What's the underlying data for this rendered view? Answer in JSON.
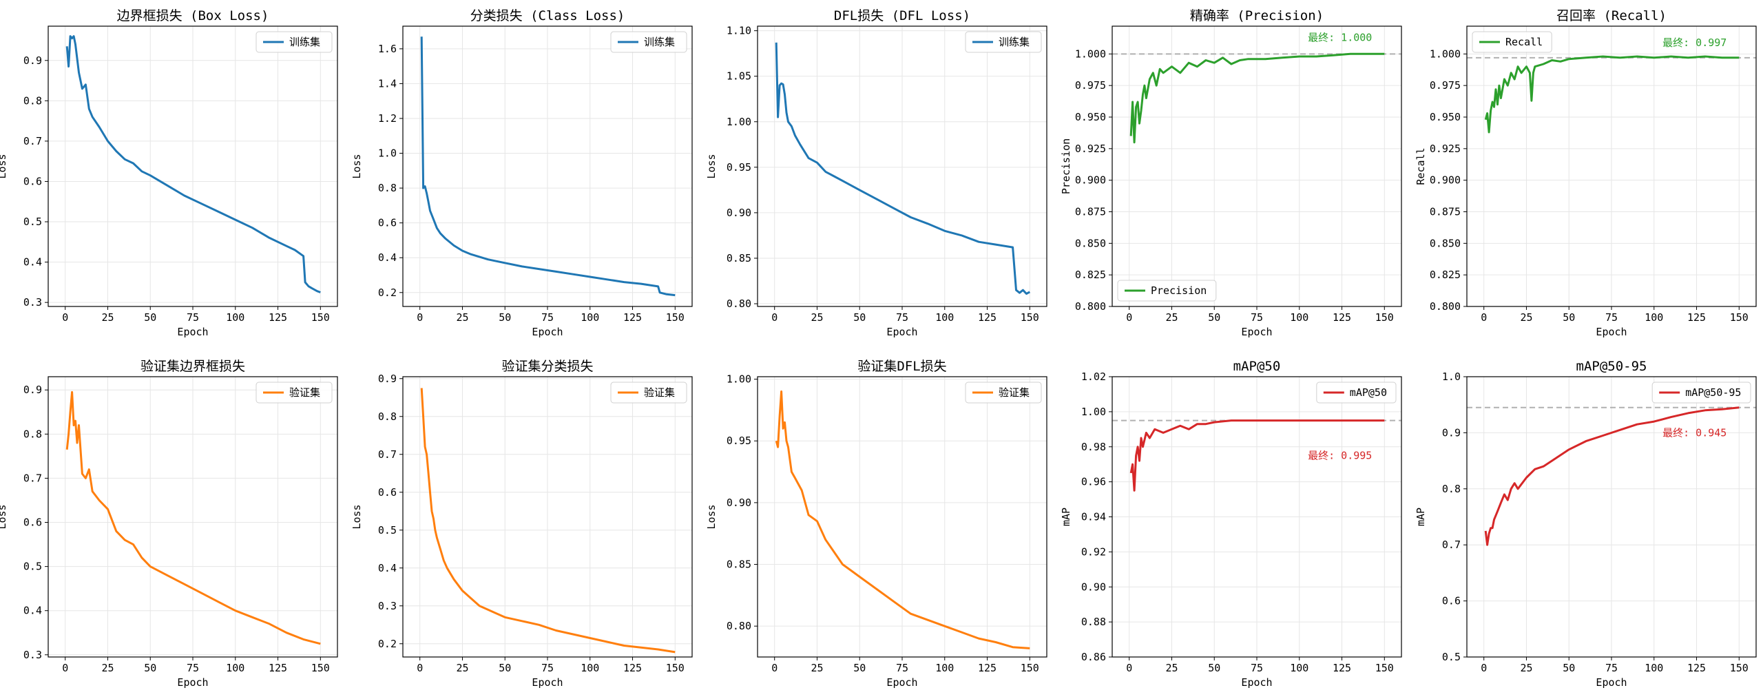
{
  "chart_data": [
    {
      "type": "line",
      "title": "边界框损失 (Box Loss)",
      "xlabel": "Epoch",
      "ylabel": "Loss",
      "xlim": [
        -10,
        160
      ],
      "ylim": [
        0.29,
        0.985
      ],
      "xticks": [
        0,
        25,
        50,
        75,
        100,
        125,
        150
      ],
      "yticks": [
        0.3,
        0.4,
        0.5,
        0.6,
        0.7,
        0.8,
        0.9
      ],
      "legend": "top-right",
      "series": [
        {
          "name": "训练集",
          "color": "#1f77b4",
          "x": [
            1,
            2,
            3,
            4,
            5,
            6,
            8,
            10,
            12,
            14,
            16,
            20,
            25,
            30,
            35,
            40,
            45,
            50,
            60,
            70,
            80,
            90,
            100,
            110,
            120,
            130,
            135,
            140,
            141,
            143,
            145,
            148,
            150
          ],
          "y": [
            0.935,
            0.885,
            0.96,
            0.955,
            0.96,
            0.94,
            0.87,
            0.83,
            0.84,
            0.78,
            0.76,
            0.735,
            0.7,
            0.675,
            0.655,
            0.645,
            0.625,
            0.615,
            0.59,
            0.565,
            0.545,
            0.525,
            0.505,
            0.485,
            0.46,
            0.44,
            0.43,
            0.415,
            0.35,
            0.34,
            0.335,
            0.328,
            0.325
          ]
        }
      ]
    },
    {
      "type": "line",
      "title": "分类损失 (Class Loss)",
      "xlabel": "Epoch",
      "ylabel": "Loss",
      "xlim": [
        -10,
        160
      ],
      "ylim": [
        0.12,
        1.73
      ],
      "xticks": [
        0,
        25,
        50,
        75,
        100,
        125,
        150
      ],
      "yticks": [
        0.2,
        0.4,
        0.6,
        0.8,
        1.0,
        1.2,
        1.4,
        1.6
      ],
      "legend": "top-right",
      "series": [
        {
          "name": "训练集",
          "color": "#1f77b4",
          "x": [
            1,
            2,
            3,
            4,
            5,
            6,
            8,
            10,
            12,
            15,
            20,
            25,
            30,
            40,
            50,
            60,
            70,
            80,
            90,
            100,
            110,
            120,
            130,
            140,
            141,
            145,
            150
          ],
          "y": [
            1.67,
            0.8,
            0.81,
            0.77,
            0.72,
            0.67,
            0.62,
            0.57,
            0.54,
            0.51,
            0.47,
            0.44,
            0.42,
            0.39,
            0.37,
            0.35,
            0.335,
            0.32,
            0.305,
            0.29,
            0.275,
            0.26,
            0.25,
            0.235,
            0.2,
            0.19,
            0.185
          ]
        }
      ]
    },
    {
      "type": "line",
      "title": "DFL损失 (DFL Loss)",
      "xlabel": "Epoch",
      "ylabel": "Loss",
      "xlim": [
        -10,
        160
      ],
      "ylim": [
        0.797,
        1.105
      ],
      "xticks": [
        0,
        25,
        50,
        75,
        100,
        125,
        150
      ],
      "yticks": [
        0.8,
        0.85,
        0.9,
        0.95,
        1.0,
        1.05,
        1.1
      ],
      "legend": "top-right",
      "series": [
        {
          "name": "训练集",
          "color": "#1f77b4",
          "x": [
            1,
            2,
            3,
            4,
            5,
            6,
            7,
            8,
            10,
            12,
            15,
            20,
            25,
            30,
            35,
            40,
            50,
            60,
            70,
            80,
            90,
            100,
            110,
            120,
            130,
            140,
            142,
            144,
            146,
            148,
            150
          ],
          "y": [
            1.087,
            1.005,
            1.04,
            1.042,
            1.041,
            1.03,
            1.01,
            1.0,
            0.995,
            0.985,
            0.975,
            0.96,
            0.955,
            0.945,
            0.94,
            0.935,
            0.925,
            0.915,
            0.905,
            0.895,
            0.888,
            0.88,
            0.875,
            0.868,
            0.865,
            0.862,
            0.815,
            0.812,
            0.815,
            0.811,
            0.813
          ]
        }
      ]
    },
    {
      "type": "line",
      "title": "精确率 (Precision)",
      "xlabel": "Epoch",
      "ylabel": "Precision",
      "xlim": [
        -10,
        160
      ],
      "ylim": [
        0.8,
        1.022
      ],
      "xticks": [
        0,
        25,
        50,
        75,
        100,
        125,
        150
      ],
      "yticks": [
        0.8,
        0.825,
        0.85,
        0.875,
        0.9,
        0.925,
        0.95,
        0.975,
        1.0
      ],
      "legend": "bottom-left",
      "reference_line": 1.0,
      "annotation": "最终: 1.000",
      "annotation_anchor": {
        "x": 105,
        "y": 1.013
      },
      "annotation_color": "#2ca02c",
      "series": [
        {
          "name": "Precision",
          "color": "#2ca02c",
          "x": [
            1,
            2,
            3,
            4,
            5,
            6,
            7,
            8,
            9,
            10,
            12,
            14,
            16,
            18,
            20,
            25,
            30,
            35,
            40,
            45,
            50,
            55,
            60,
            65,
            70,
            80,
            90,
            100,
            110,
            120,
            130,
            140,
            150
          ],
          "y": [
            0.935,
            0.962,
            0.93,
            0.958,
            0.962,
            0.945,
            0.955,
            0.968,
            0.975,
            0.965,
            0.98,
            0.985,
            0.975,
            0.988,
            0.985,
            0.99,
            0.985,
            0.993,
            0.99,
            0.995,
            0.993,
            0.997,
            0.992,
            0.995,
            0.996,
            0.996,
            0.997,
            0.998,
            0.998,
            0.999,
            1.0,
            1.0,
            1.0
          ]
        }
      ]
    },
    {
      "type": "line",
      "title": "召回率 (Recall)",
      "xlabel": "Epoch",
      "ylabel": "Recall",
      "xlim": [
        -10,
        160
      ],
      "ylim": [
        0.8,
        1.022
      ],
      "xticks": [
        0,
        25,
        50,
        75,
        100,
        125,
        150
      ],
      "yticks": [
        0.8,
        0.825,
        0.85,
        0.875,
        0.9,
        0.925,
        0.95,
        0.975,
        1.0
      ],
      "legend": "top-left",
      "reference_line": 0.997,
      "annotation": "最终: 0.997",
      "annotation_anchor": {
        "x": 105,
        "y": 1.009
      },
      "annotation_color": "#2ca02c",
      "series": [
        {
          "name": "Recall",
          "color": "#2ca02c",
          "x": [
            1,
            2,
            3,
            4,
            5,
            6,
            7,
            8,
            9,
            10,
            12,
            14,
            16,
            18,
            20,
            22,
            25,
            27,
            28,
            29,
            30,
            35,
            40,
            45,
            50,
            60,
            70,
            80,
            90,
            100,
            110,
            120,
            130,
            140,
            150
          ],
          "y": [
            0.948,
            0.953,
            0.938,
            0.955,
            0.962,
            0.958,
            0.972,
            0.96,
            0.975,
            0.965,
            0.98,
            0.975,
            0.985,
            0.98,
            0.99,
            0.985,
            0.99,
            0.985,
            0.963,
            0.985,
            0.99,
            0.992,
            0.995,
            0.994,
            0.996,
            0.997,
            0.998,
            0.997,
            0.998,
            0.997,
            0.998,
            0.997,
            0.998,
            0.997,
            0.997
          ]
        }
      ]
    },
    {
      "type": "line",
      "title": "验证集边界框损失",
      "xlabel": "Epoch",
      "ylabel": "Loss",
      "xlim": [
        -10,
        160
      ],
      "ylim": [
        0.295,
        0.93
      ],
      "xticks": [
        0,
        25,
        50,
        75,
        100,
        125,
        150
      ],
      "yticks": [
        0.3,
        0.4,
        0.5,
        0.6,
        0.7,
        0.8,
        0.9
      ],
      "legend": "top-right",
      "series": [
        {
          "name": "验证集",
          "color": "#ff7f0e",
          "x": [
            1,
            2,
            3,
            4,
            5,
            6,
            7,
            8,
            10,
            12,
            14,
            16,
            20,
            25,
            30,
            35,
            40,
            45,
            50,
            60,
            70,
            80,
            90,
            100,
            110,
            120,
            130,
            140,
            150
          ],
          "y": [
            0.765,
            0.8,
            0.85,
            0.895,
            0.82,
            0.83,
            0.78,
            0.82,
            0.71,
            0.7,
            0.72,
            0.67,
            0.65,
            0.63,
            0.58,
            0.56,
            0.55,
            0.52,
            0.5,
            0.48,
            0.46,
            0.44,
            0.42,
            0.4,
            0.385,
            0.37,
            0.35,
            0.335,
            0.325
          ]
        }
      ]
    },
    {
      "type": "line",
      "title": "验证集分类损失",
      "xlabel": "Epoch",
      "ylabel": "Loss",
      "xlim": [
        -10,
        160
      ],
      "ylim": [
        0.165,
        0.905
      ],
      "xticks": [
        0,
        25,
        50,
        75,
        100,
        125,
        150
      ],
      "yticks": [
        0.2,
        0.3,
        0.4,
        0.5,
        0.6,
        0.7,
        0.8,
        0.9
      ],
      "legend": "top-right",
      "series": [
        {
          "name": "验证集",
          "color": "#ff7f0e",
          "x": [
            1,
            2,
            3,
            4,
            5,
            6,
            7,
            8,
            9,
            10,
            12,
            14,
            16,
            20,
            25,
            30,
            35,
            40,
            50,
            60,
            70,
            80,
            90,
            100,
            110,
            120,
            130,
            140,
            150
          ],
          "y": [
            0.875,
            0.8,
            0.72,
            0.7,
            0.65,
            0.6,
            0.55,
            0.53,
            0.5,
            0.48,
            0.45,
            0.42,
            0.4,
            0.37,
            0.34,
            0.32,
            0.3,
            0.29,
            0.27,
            0.26,
            0.25,
            0.235,
            0.225,
            0.215,
            0.205,
            0.195,
            0.19,
            0.185,
            0.178
          ]
        }
      ]
    },
    {
      "type": "line",
      "title": "验证集DFL损失",
      "xlabel": "Epoch",
      "ylabel": "Loss",
      "xlim": [
        -10,
        160
      ],
      "ylim": [
        0.775,
        1.002
      ],
      "xticks": [
        0,
        25,
        50,
        75,
        100,
        125,
        150
      ],
      "yticks": [
        0.8,
        0.85,
        0.9,
        0.95,
        1.0
      ],
      "legend": "top-right",
      "series": [
        {
          "name": "验证集",
          "color": "#ff7f0e",
          "x": [
            1,
            2,
            3,
            4,
            5,
            6,
            7,
            8,
            10,
            12,
            14,
            16,
            20,
            25,
            30,
            35,
            40,
            45,
            50,
            60,
            70,
            80,
            90,
            100,
            110,
            120,
            130,
            140,
            150
          ],
          "y": [
            0.95,
            0.945,
            0.97,
            0.99,
            0.96,
            0.965,
            0.95,
            0.945,
            0.925,
            0.92,
            0.915,
            0.91,
            0.89,
            0.885,
            0.87,
            0.86,
            0.85,
            0.845,
            0.84,
            0.83,
            0.82,
            0.81,
            0.805,
            0.8,
            0.795,
            0.79,
            0.787,
            0.783,
            0.782
          ]
        }
      ]
    },
    {
      "type": "line",
      "title": "mAP@50",
      "xlabel": "Epoch",
      "ylabel": "mAP",
      "xlim": [
        -10,
        160
      ],
      "ylim": [
        0.86,
        1.02
      ],
      "xticks": [
        0,
        25,
        50,
        75,
        100,
        125,
        150
      ],
      "yticks": [
        0.86,
        0.88,
        0.9,
        0.92,
        0.94,
        0.96,
        0.98,
        1.0,
        1.02
      ],
      "legend": "top-right",
      "reference_line": 0.995,
      "annotation": "最终: 0.995",
      "annotation_anchor": {
        "x": 105,
        "y": 0.975
      },
      "annotation_color": "#d62728",
      "series": [
        {
          "name": "mAP@50",
          "color": "#d62728",
          "x": [
            1,
            2,
            3,
            4,
            5,
            6,
            7,
            8,
            10,
            12,
            15,
            20,
            25,
            30,
            35,
            40,
            45,
            50,
            60,
            70,
            80,
            90,
            100,
            110,
            120,
            130,
            140,
            150
          ],
          "y": [
            0.965,
            0.97,
            0.955,
            0.975,
            0.98,
            0.972,
            0.985,
            0.98,
            0.988,
            0.985,
            0.99,
            0.988,
            0.99,
            0.992,
            0.99,
            0.993,
            0.993,
            0.994,
            0.995,
            0.995,
            0.995,
            0.995,
            0.995,
            0.995,
            0.995,
            0.995,
            0.995,
            0.995
          ]
        }
      ]
    },
    {
      "type": "line",
      "title": "mAP@50-95",
      "xlabel": "Epoch",
      "ylabel": "mAP",
      "xlim": [
        -10,
        160
      ],
      "ylim": [
        0.5,
        1.0
      ],
      "xticks": [
        0,
        25,
        50,
        75,
        100,
        125,
        150
      ],
      "yticks": [
        0.5,
        0.6,
        0.7,
        0.8,
        0.9,
        1.0
      ],
      "legend": "top-right",
      "reference_line": 0.945,
      "annotation": "最终: 0.945",
      "annotation_anchor": {
        "x": 105,
        "y": 0.9
      },
      "annotation_color": "#d62728",
      "series": [
        {
          "name": "mAP@50-95",
          "color": "#d62728",
          "x": [
            1,
            2,
            3,
            4,
            5,
            6,
            8,
            10,
            12,
            14,
            16,
            18,
            20,
            25,
            30,
            35,
            40,
            50,
            60,
            70,
            80,
            90,
            100,
            110,
            120,
            130,
            140,
            150
          ],
          "y": [
            0.725,
            0.7,
            0.72,
            0.73,
            0.73,
            0.745,
            0.76,
            0.775,
            0.79,
            0.78,
            0.8,
            0.81,
            0.8,
            0.82,
            0.835,
            0.84,
            0.85,
            0.87,
            0.885,
            0.895,
            0.905,
            0.915,
            0.92,
            0.928,
            0.935,
            0.94,
            0.942,
            0.945
          ]
        }
      ]
    }
  ]
}
